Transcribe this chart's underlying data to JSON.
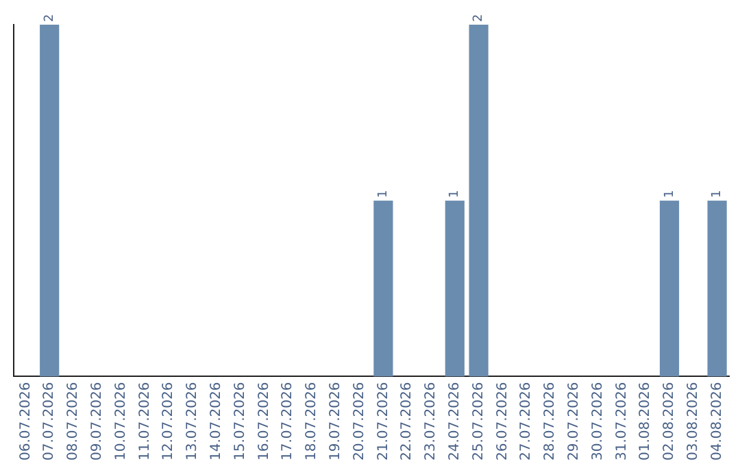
{
  "chart_data": {
    "type": "bar",
    "categories": [
      "06.07.2026",
      "07.07.2026",
      "08.07.2026",
      "09.07.2026",
      "10.07.2026",
      "11.07.2026",
      "12.07.2026",
      "13.07.2026",
      "14.07.2026",
      "15.07.2026",
      "16.07.2026",
      "17.07.2026",
      "18.07.2026",
      "19.07.2026",
      "20.07.2026",
      "21.07.2026",
      "22.07.2026",
      "23.07.2026",
      "24.07.2026",
      "25.07.2026",
      "26.07.2026",
      "27.07.2026",
      "28.07.2026",
      "29.07.2026",
      "30.07.2026",
      "31.07.2026",
      "01.08.2026",
      "02.08.2026",
      "03.08.2026",
      "04.08.2026"
    ],
    "values": [
      0,
      2,
      0,
      0,
      0,
      0,
      0,
      0,
      0,
      0,
      0,
      0,
      0,
      0,
      0,
      1,
      0,
      0,
      1,
      2,
      0,
      0,
      0,
      0,
      0,
      0,
      0,
      1,
      0,
      1
    ],
    "value_labels": [
      null,
      "2",
      null,
      null,
      null,
      null,
      null,
      null,
      null,
      null,
      null,
      null,
      null,
      null,
      null,
      "1",
      null,
      null,
      "1",
      "2",
      null,
      null,
      null,
      null,
      null,
      null,
      null,
      "1",
      null,
      "1"
    ],
    "color": "#6a8caf",
    "tick_labels": "x",
    "grid": false,
    "legend": false
  }
}
